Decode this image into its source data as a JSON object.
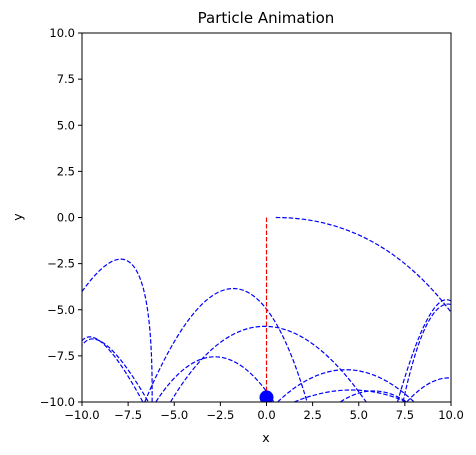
{
  "chart_data": {
    "type": "line",
    "title": "Particle Animation",
    "xlabel": "x",
    "ylabel": "y",
    "xlim": [
      -10,
      10
    ],
    "ylim": [
      -10,
      10
    ],
    "xticks": [
      -10,
      -7.5,
      -5,
      -2.5,
      0,
      2.5,
      5,
      7.5,
      10
    ],
    "yticks": [
      -10,
      -7.5,
      -5,
      -2.5,
      0,
      2.5,
      5,
      7.5,
      10
    ],
    "xtick_labels": [
      "−10.0",
      "−7.5",
      "−5.0",
      "−2.5",
      "0.0",
      "2.5",
      "5.0",
      "7.5",
      "10.0"
    ],
    "ytick_labels": [
      "−10.0",
      "−7.5",
      "−5.0",
      "−2.5",
      "0.0",
      "2.5",
      "5.0",
      "7.5",
      "10.0"
    ],
    "grid": false,
    "colors": {
      "trajectory": "#0000ff",
      "guide": "#ff0000",
      "particle": "#0000ff"
    },
    "series": [
      {
        "style": "blue-dashed",
        "x": [
          0.5,
          5.8,
          10.2
        ],
        "y": [
          0.0,
          -1.35,
          -5.4
        ]
      },
      {
        "style": "blue-dashed",
        "x": [
          -10.4,
          -7.2,
          -6.2
        ],
        "y": [
          -4.6,
          -2.65,
          -10.0
        ]
      },
      {
        "style": "blue-dashed",
        "x": [
          -6.6,
          -1.8,
          2.2
        ],
        "y": [
          -10.0,
          -3.85,
          -10.0
        ]
      },
      {
        "style": "blue-dashed",
        "x": [
          -5.2,
          -0.1,
          5.4
        ],
        "y": [
          -10.0,
          -5.9,
          -10.0
        ]
      },
      {
        "style": "blue-dashed",
        "x": [
          -10.2,
          -8.9,
          -6.7
        ],
        "y": [
          -7.0,
          -6.8,
          -10.0
        ]
      },
      {
        "style": "blue-dashed",
        "x": [
          -10.1,
          -8.7,
          -6.4
        ],
        "y": [
          -7.1,
          -6.9,
          -10.0
        ]
      },
      {
        "style": "blue-dashed",
        "x": [
          -6.0,
          -2.8,
          0.4
        ],
        "y": [
          -10.0,
          -7.55,
          -10.0
        ]
      },
      {
        "style": "blue-dashed",
        "x": [
          0.6,
          4.3,
          8.0
        ],
        "y": [
          -10.0,
          -8.25,
          -10.0
        ]
      },
      {
        "style": "blue-dashed",
        "x": [
          1.5,
          4.6,
          7.6
        ],
        "y": [
          -10.0,
          -9.35,
          -10.0
        ]
      },
      {
        "style": "blue-dashed",
        "x": [
          4.0,
          5.8,
          7.6
        ],
        "y": [
          -10.0,
          -9.4,
          -10.0
        ]
      },
      {
        "style": "blue-dashed",
        "x": [
          7.1,
          8.9,
          10.3
        ],
        "y": [
          -10.0,
          -5.2,
          -4.85
        ]
      },
      {
        "style": "blue-dashed",
        "x": [
          7.4,
          8.8,
          10.3
        ],
        "y": [
          -10.0,
          -5.6,
          -4.85
        ]
      },
      {
        "style": "blue-dashed",
        "x": [
          7.6,
          9.0,
          10.3
        ],
        "y": [
          -10.0,
          -8.9,
          -8.75
        ]
      },
      {
        "style": "red-dashed",
        "x": [
          0.0,
          0.0
        ],
        "y": [
          0.0,
          -10.0
        ]
      }
    ],
    "particle": {
      "x": 0.0,
      "y": -9.75
    }
  }
}
